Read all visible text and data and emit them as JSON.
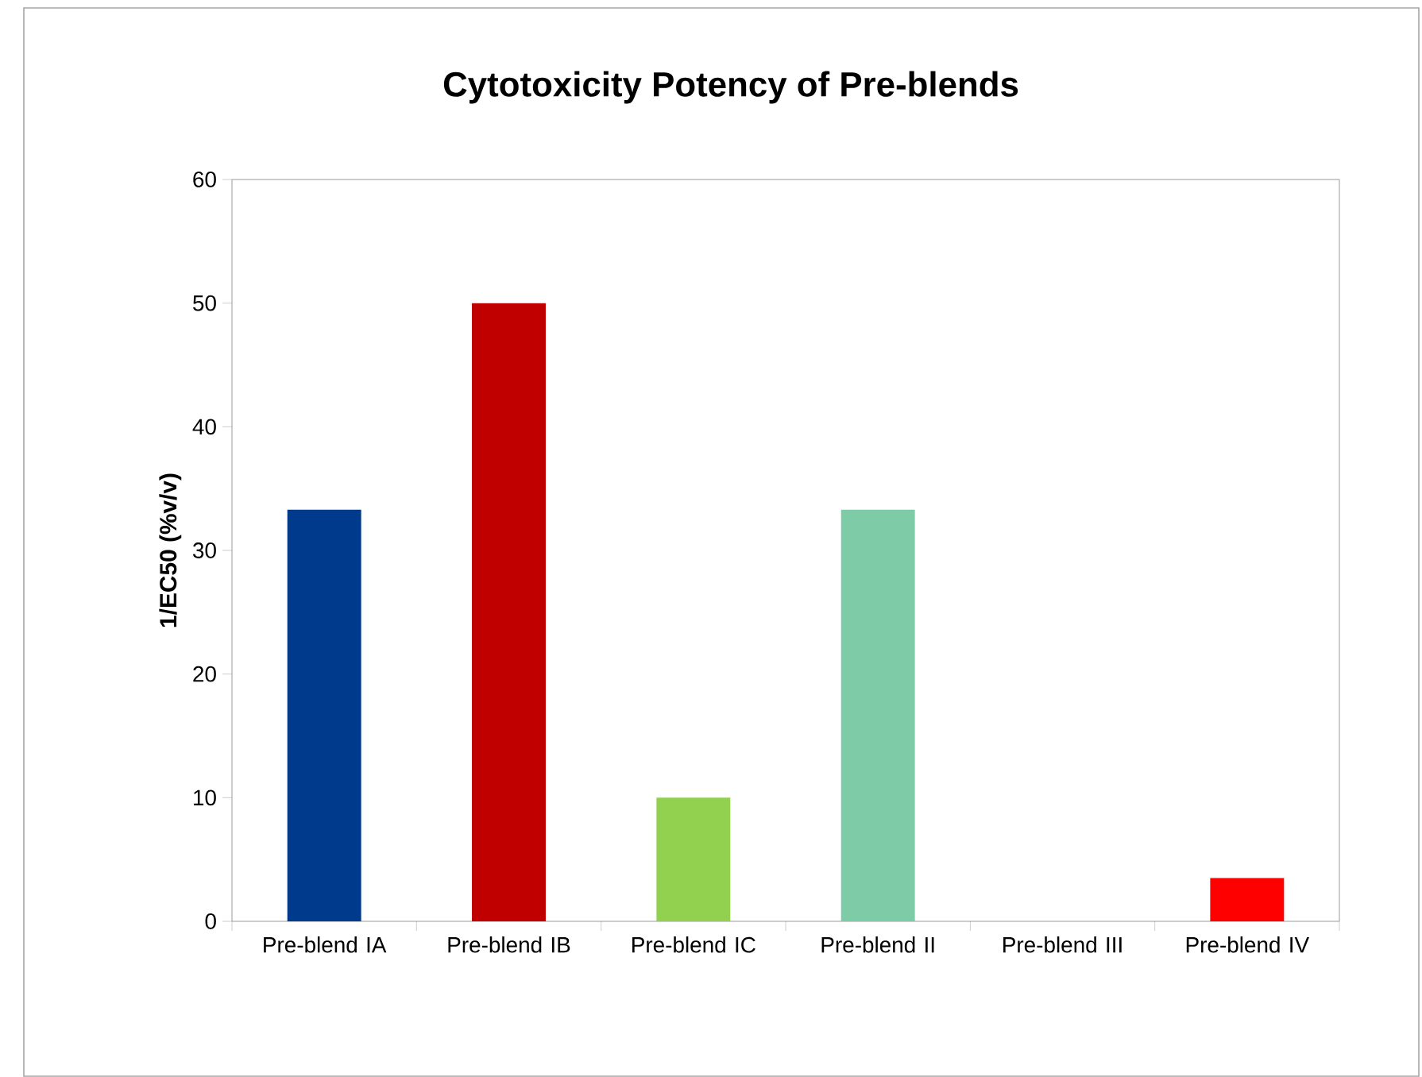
{
  "chart_data": {
    "type": "bar",
    "title": "Cytotoxicity Potency of Pre-blends",
    "ylabel": "1/EC50 (%v/v)",
    "categories": [
      "Pre-blend IA",
      "Pre-blend IB",
      "Pre-blend IC",
      "Pre-blend II",
      "Pre-blend III",
      "Pre-blend IV"
    ],
    "values": [
      33.3,
      50,
      10,
      33.3,
      0,
      3.5
    ],
    "colors": [
      "#003a8c",
      "#c00000",
      "#92d050",
      "#7ecba7",
      null,
      "#ff0000"
    ],
    "ylim": [
      0,
      60
    ],
    "yticks": [
      0,
      10,
      20,
      30,
      40,
      50,
      60
    ]
  }
}
